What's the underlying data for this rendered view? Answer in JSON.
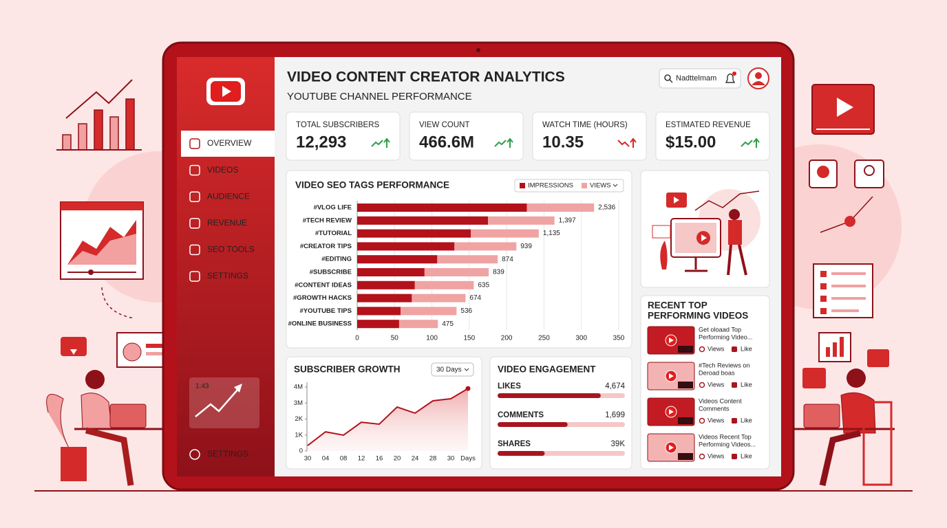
{
  "header": {
    "title": "VIDEO CONTENT CREATOR ANALYTICS",
    "subtitle": "YOUTUBE CHANNEL PERFORMANCE",
    "search": "Nadttelmam"
  },
  "sidebar": {
    "items": [
      "OVERVIEW",
      "VIDEOS",
      "AUDIENCE",
      "REVENUE",
      "SEO TOOLS",
      "SETTINGS"
    ],
    "active": 0,
    "widget_time": "1:43",
    "footer": "SETTINGS"
  },
  "kpis": [
    {
      "label": "TOTAL SUBSCRIBERS",
      "value": "12,293",
      "trend": "up"
    },
    {
      "label": "VIEW COUNT",
      "value": "466.6M",
      "trend": "up"
    },
    {
      "label": "WATCH TIME (HOURS)",
      "value": "10.35",
      "trend": "down"
    },
    {
      "label": "ESTIMATED REVENUE",
      "value": "$15.00",
      "trend": "up"
    }
  ],
  "chart_data": [
    {
      "type": "bar",
      "orientation": "horizontal",
      "title": "VIDEO SEO TAGS PERFORMANCE",
      "categories": [
        "#VLOG LIFE",
        "#TECH REVIEW",
        "#TUTORIAL",
        "#CREATOR TIPS",
        "#EDITING",
        "#SUBSCRIBE",
        "#CONTENT IDEAS",
        "#GROWTH HACKS",
        "#YOUTUBE TIPS",
        "#ONLINE BUSINESS"
      ],
      "series": [
        {
          "name": "IMPRESSIONS",
          "color": "#b3121b",
          "values": [
            227,
            175,
            152,
            130,
            107,
            90,
            77,
            73,
            58,
            56
          ]
        },
        {
          "name": "VIEWS",
          "color": "#f0a3a3",
          "values": [
            317,
            264,
            243,
            213,
            188,
            176,
            156,
            145,
            133,
            108
          ]
        }
      ],
      "bar_labels": [
        "2,536",
        "1,397",
        "1,135",
        "939",
        "874",
        "839",
        "635",
        "674",
        "536",
        "475"
      ],
      "xlim": [
        0,
        350
      ],
      "xticks": [
        0,
        50,
        100,
        150,
        200,
        250,
        300,
        350
      ],
      "grid": true
    },
    {
      "type": "line",
      "title": "SUBSCRIBER GROWTH",
      "range_selector": "30 Days",
      "categories": [
        "30",
        "04",
        "08",
        "12",
        "16",
        "20",
        "24",
        "28",
        "30",
        null
      ],
      "x_label": "Days",
      "series": [
        {
          "color": "#b3121b",
          "values": [
            0.34,
            1.2,
            0.99,
            1.8,
            1.68,
            2.75,
            2.37,
            3.14,
            3.27,
            3.91
          ]
        }
      ],
      "ylim": [
        0,
        4
      ],
      "yticks": [
        0,
        {
          "value": 1,
          "label": "1K"
        },
        {
          "value": 2,
          "label": "2K"
        },
        {
          "value": 3,
          "label": "3M"
        },
        {
          "value": 4,
          "label": "4M"
        }
      ]
    }
  ],
  "engagement": {
    "title": "VIDEO ENGAGEMENT",
    "items": [
      {
        "label": "LIKES",
        "value": "4,674",
        "fill": 81
      },
      {
        "label": "COMMENTS",
        "value": "1,699",
        "fill": 55
      },
      {
        "label": "SHARES",
        "value": "39K",
        "fill": 37
      }
    ]
  },
  "recent": {
    "title_lines": [
      "RECENT TOP",
      "PERFORMING VIDEOS"
    ],
    "views_label": "Views",
    "like_label": "Like",
    "videos": [
      {
        "title_lines": [
          "Get oloaad Top",
          "Performing Video..."
        ],
        "duration": "1:36"
      },
      {
        "title_lines": [
          "#Tech Reviews on",
          "Deroad boas"
        ],
        "duration": "3:23"
      },
      {
        "title_lines": [
          "Videos Content",
          "Comments"
        ],
        "duration": "2:32"
      },
      {
        "title_lines": [
          "Videos Recent Top",
          "Performing Videos..."
        ],
        "duration": "0:15"
      }
    ]
  }
}
